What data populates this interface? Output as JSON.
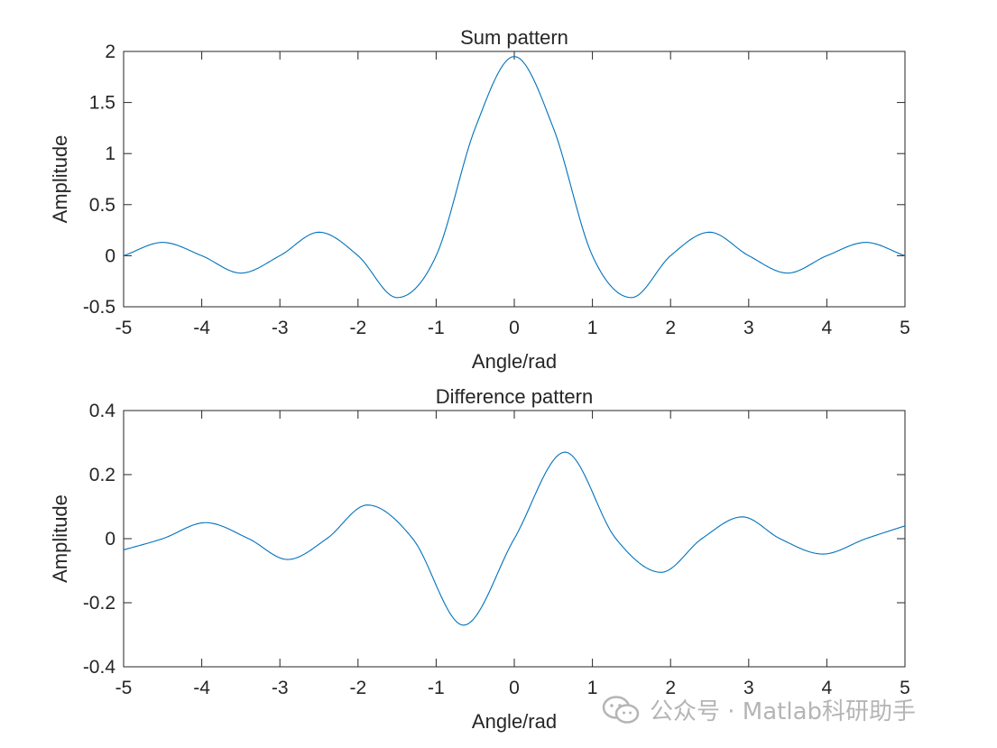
{
  "chart_data": [
    {
      "type": "line",
      "title": "Sum pattern",
      "xlabel": "Angle/rad",
      "ylabel": "Amplitude",
      "xlim": [
        -5,
        5
      ],
      "ylim": [
        -0.5,
        2
      ],
      "xticks": [
        -5,
        -4,
        -3,
        -2,
        -1,
        0,
        1,
        2,
        3,
        4,
        5
      ],
      "yticks": [
        -0.5,
        0,
        0.5,
        1,
        1.5,
        2
      ],
      "xtick_labels": [
        "-5",
        "-4",
        "-3",
        "-2",
        "-1",
        "0",
        "1",
        "2",
        "3",
        "4",
        "5"
      ],
      "ytick_labels": [
        "-0.5",
        "0",
        "0.5",
        "1",
        "1.5",
        "2"
      ],
      "grid": false,
      "color": "#0072BD",
      "series": [
        {
          "x": [
            -5,
            -4.5,
            -4,
            -3.5,
            -3,
            -2.5,
            -2,
            -1.5,
            -1,
            -0.5,
            0,
            0.5,
            1,
            1.5,
            2,
            2.5,
            3,
            3.5,
            4,
            4.5,
            5
          ],
          "values": [
            0.0,
            0.13,
            0.0,
            -0.17,
            0.0,
            0.23,
            0.0,
            -0.41,
            0.0,
            1.25,
            1.95,
            1.25,
            0.0,
            -0.41,
            0.0,
            0.23,
            0.0,
            -0.17,
            0.0,
            0.13,
            0.0
          ]
        }
      ]
    },
    {
      "type": "line",
      "title": "Difference pattern",
      "xlabel": "Angle/rad",
      "ylabel": "Amplitude",
      "xlim": [
        -5,
        5
      ],
      "ylim": [
        -0.4,
        0.4
      ],
      "xticks": [
        -5,
        -4,
        -3,
        -2,
        -1,
        0,
        1,
        2,
        3,
        4,
        5
      ],
      "yticks": [
        -0.4,
        -0.2,
        0,
        0.2,
        0.4
      ],
      "xtick_labels": [
        "-5",
        "-4",
        "-3",
        "-2",
        "-1",
        "0",
        "1",
        "2",
        "3",
        "4",
        "5"
      ],
      "ytick_labels": [
        "-0.4",
        "-0.2",
        "0",
        "0.2",
        "0.4"
      ],
      "grid": false,
      "color": "#0072BD",
      "series": [
        {
          "x": [
            -5,
            -4.5,
            -3.95,
            -3.4,
            -2.9,
            -2.4,
            -1.88,
            -1.3,
            -0.65,
            0,
            0.65,
            1.3,
            1.88,
            2.4,
            2.92,
            3.4,
            3.95,
            4.5,
            5
          ],
          "values": [
            -0.035,
            0.0,
            0.05,
            0.0,
            -0.065,
            0.0,
            0.105,
            0.0,
            -0.27,
            0.0,
            0.27,
            0.0,
            -0.105,
            0.0,
            0.068,
            0.0,
            -0.048,
            0.0,
            0.04
          ]
        }
      ]
    }
  ],
  "watermark": {
    "text": "公众号 · Matlab科研助手",
    "icon": "wechat-icon"
  }
}
